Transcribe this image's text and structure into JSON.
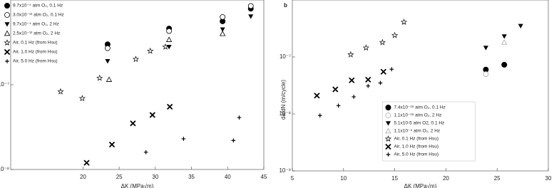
{
  "chart_data": [
    {
      "type": "scatter",
      "xlabel": "ΔK (MPa√m)",
      "xscale": "linear",
      "yscale": "log",
      "xlim": [
        10,
        45
      ],
      "xticks": [
        20,
        25,
        30,
        35,
        40,
        45
      ],
      "ylim": [
        1e-08,
        1e-06
      ],
      "yticks": [
        {
          "value": 1e-08,
          "label": "10⁻⁸"
        },
        {
          "value": 1e-07,
          "label": "10⁻⁷"
        }
      ],
      "legend": "upper left",
      "series": [
        {
          "name": "9.7x10⁻⁴ atm O₂, 0.1 Hz",
          "marker": "circle",
          "color": "#000",
          "x": [
            23.4,
            31.9,
            39.3,
            43.2
          ],
          "values": [
            3e-07,
            4.6e-07,
            5.6e-07,
            7.9e-07
          ]
        },
        {
          "name": "3.0x10⁻¹³ atm O₂, 0.1 Hz",
          "marker": "circle-open",
          "color": "#000",
          "x": [
            23.4,
            31.9,
            39.3,
            43.2
          ],
          "values": [
            2.7e-07,
            4.3e-07,
            6.3e-07,
            8.5e-07
          ]
        },
        {
          "name": "9.7x10⁻⁴ atm O₂, 2 Hz",
          "marker": "triangle-down",
          "color": "#000",
          "x": [
            23.4,
            31.9,
            39.3,
            43.2
          ],
          "values": [
            1.9e-07,
            2.8e-07,
            4.5e-07,
            6.4e-07
          ]
        },
        {
          "name": "2.5x10⁻¹² atm O₂, 2 Hz",
          "marker": "triangle-open",
          "color": "#000",
          "x": [
            23.6,
            31.9,
            39.3
          ],
          "values": [
            1.15e-07,
            3.4e-07,
            4e-07
          ]
        },
        {
          "name": "Air, 0.1 Hz (from Hsu)",
          "marker": "star-open",
          "color": "#000",
          "x": [
            16.9,
            19.9,
            22.3,
            27.3,
            29.3,
            31.4
          ],
          "values": [
            8.3e-08,
            6.9e-08,
            1.2e-07,
            2e-07,
            2.5e-07,
            2.8e-07
          ]
        },
        {
          "name": "Air, 1.0 Hz (from Hsu)",
          "marker": "x",
          "color": "#000",
          "x": [
            20.5,
            24,
            26.9,
            29.6,
            32
          ],
          "values": [
            1.2e-08,
            1.97e-08,
            3.5e-08,
            4.4e-08,
            5.5e-08
          ]
        },
        {
          "name": "Air, 5.0 Hz (from Hsu)",
          "marker": "plus",
          "color": "#000",
          "x": [
            28.7,
            33.9,
            40.8,
            41.6
          ],
          "values": [
            1.6e-08,
            2.3e-08,
            2.2e-08,
            4.1e-08
          ]
        }
      ]
    },
    {
      "type": "scatter",
      "panel_label": "b",
      "xlabel": "ΔK (MPa√m)",
      "ylabel": "da/dN (m/cycle)",
      "xscale": "linear",
      "yscale": "log",
      "xlim": [
        5,
        30
      ],
      "xticks": [
        5,
        10,
        15,
        20,
        25,
        30
      ],
      "ylim": [
        1e-09,
        1e-06
      ],
      "yticks": [
        {
          "value": 1e-09,
          "label": "10⁻⁹"
        },
        {
          "value": 1e-08,
          "label": "10⁻⁸"
        },
        {
          "value": 1e-07,
          "label": "10⁻⁷"
        }
      ],
      "legend": "lower center",
      "series": [
        {
          "name": "7.4x10⁻¹⁸ atm O₂, 0.1 Hz",
          "marker": "circle",
          "color": "#000",
          "x": [
            23.9,
            25.7
          ],
          "values": [
            6e-08,
            7.3e-08
          ]
        },
        {
          "name": "1.1x10⁻¹⁸ atm O₂, 2 Hz",
          "marker": "circle-open",
          "color": "#aaa",
          "x": [
            23.9
          ],
          "values": [
            5e-08
          ]
        },
        {
          "name": "5.1x10-5 atm O2, 0.1 Hz",
          "marker": "triangle-down",
          "color": "#000",
          "x": [
            23.9,
            25.7,
            27.3
          ],
          "values": [
            1.45e-07,
            2.3e-07,
            3.5e-07
          ]
        },
        {
          "name": "1.1x10⁻⁵ atm O₂, 2 Hz",
          "marker": "triangle-open",
          "color": "#aaa",
          "x": [
            25.7
          ],
          "values": [
            1.8e-07
          ]
        },
        {
          "name": "Air, 0.1 Hz (from Hsu)",
          "marker": "star-open",
          "color": "#000",
          "x": [
            10.7,
            12.2,
            13.8,
            15,
            15.9
          ],
          "values": [
            1.1e-07,
            1.45e-07,
            1.8e-07,
            2.4e-07,
            4.1e-07
          ]
        },
        {
          "name": "Air, 1.0 Hz (from Hsu)",
          "marker": "x",
          "color": "#000",
          "x": [
            7.4,
            9.2,
            10.8,
            12.4,
            13.9
          ],
          "values": [
            2.1e-08,
            2.7e-08,
            3.9e-08,
            4e-08,
            5.5e-08
          ]
        },
        {
          "name": "Air, 5.0 Hz (from Hsu)",
          "marker": "plus",
          "color": "#000",
          "x": [
            7.7,
            9.5,
            11,
            12.4,
            13.6,
            14.7
          ],
          "values": [
            9.4e-09,
            1.4e-08,
            2e-08,
            3.1e-08,
            3.5e-08,
            6.1e-08
          ]
        }
      ]
    }
  ]
}
